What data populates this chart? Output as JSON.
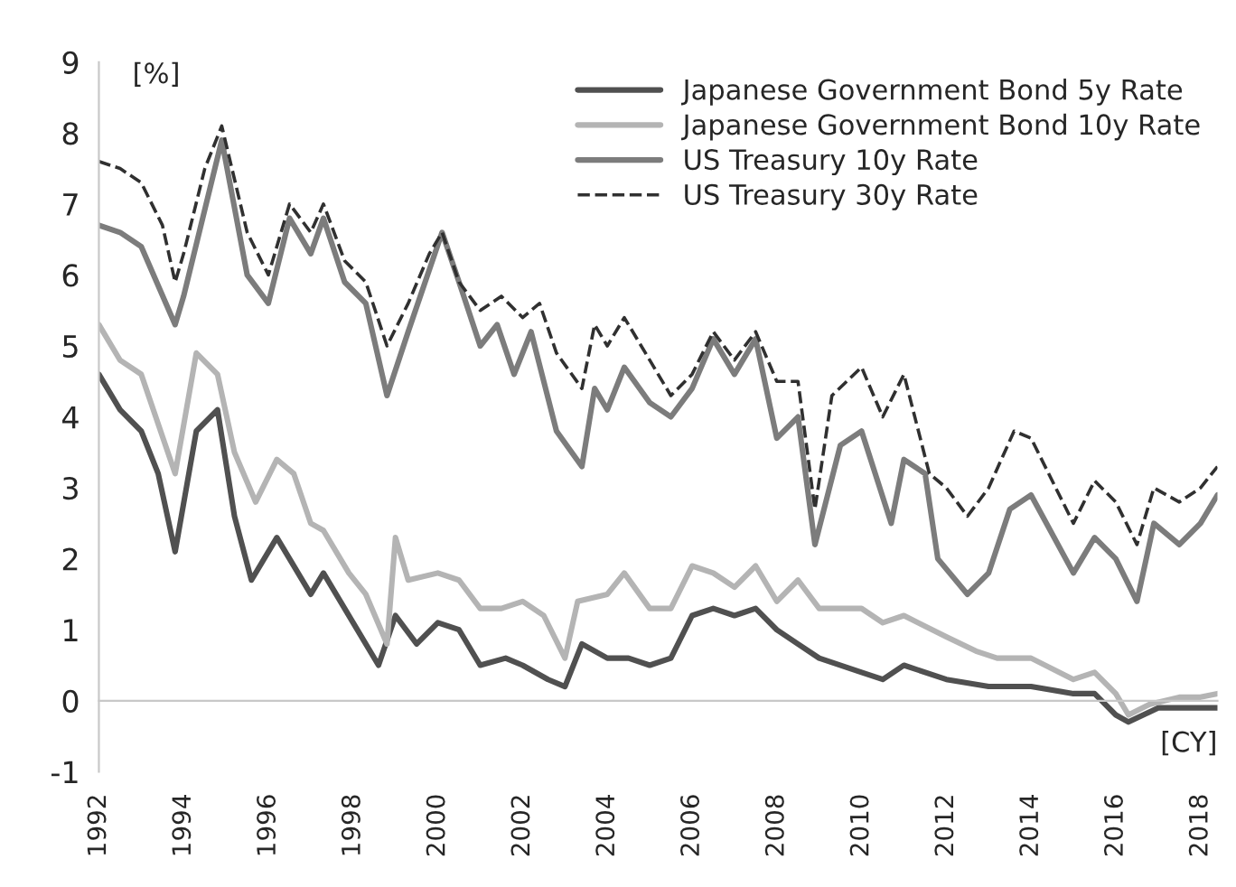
{
  "chart_data": {
    "type": "line",
    "xlim": [
      1992,
      2018.4
    ],
    "xticks": [
      1992,
      1994,
      1996,
      1998,
      2000,
      2002,
      2004,
      2006,
      2008,
      2010,
      2012,
      2014,
      2016,
      2018
    ],
    "ylim": [
      -1,
      9
    ],
    "yticks": [
      -1,
      0,
      1,
      2,
      3,
      4,
      5,
      6,
      7,
      8,
      9
    ],
    "legend": "top right",
    "annotations": [
      "[%]",
      "[CY]"
    ],
    "series": [
      {
        "name": "Japanese Government Bond 5y Rate",
        "color": "#505050",
        "line_style": "solid",
        "x": [
          1992,
          1992.5,
          1993,
          1993.4,
          1993.8,
          1994.3,
          1994.8,
          1995.2,
          1995.6,
          1996.2,
          1996.5,
          1997,
          1997.3,
          1998,
          1998.6,
          1999,
          1999.5,
          2000,
          2000.5,
          2001,
          2001.6,
          2002,
          2002.6,
          2003,
          2003.4,
          2004,
          2004.5,
          2005,
          2005.5,
          2006,
          2006.5,
          2007,
          2007.5,
          2008,
          2008.5,
          2009,
          2010,
          2010.5,
          2011,
          2012,
          2013,
          2014,
          2015,
          2015.5,
          2016,
          2016.3,
          2017,
          2018,
          2018.4
        ],
        "values": [
          4.6,
          4.1,
          3.8,
          3.2,
          2.1,
          3.8,
          4.1,
          2.6,
          1.7,
          2.3,
          2.0,
          1.5,
          1.8,
          1.1,
          0.5,
          1.2,
          0.8,
          1.1,
          1.0,
          0.5,
          0.6,
          0.5,
          0.3,
          0.2,
          0.8,
          0.6,
          0.6,
          0.5,
          0.6,
          1.2,
          1.3,
          1.2,
          1.3,
          1.0,
          0.8,
          0.6,
          0.4,
          0.3,
          0.5,
          0.3,
          0.2,
          0.2,
          0.1,
          0.1,
          -0.2,
          -0.3,
          -0.1,
          -0.1,
          -0.1
        ]
      },
      {
        "name": "Japanese Government Bond 10y Rate",
        "color": "#b4b4b4",
        "line_style": "solid",
        "x": [
          1992,
          1992.5,
          1993,
          1993.8,
          1994.3,
          1994.8,
          1995.2,
          1995.7,
          1996.2,
          1996.6,
          1997,
          1997.3,
          1997.9,
          1998.3,
          1998.8,
          1999,
          1999.3,
          2000,
          2000.5,
          2001,
          2001.5,
          2002,
          2002.5,
          2003,
          2003.3,
          2004,
          2004.4,
          2005,
          2005.5,
          2006,
          2006.5,
          2007,
          2007.5,
          2008,
          2008.5,
          2009,
          2010,
          2010.5,
          2011,
          2012,
          2012.7,
          2013.2,
          2014,
          2015,
          2015.5,
          2016,
          2016.3,
          2016.8,
          2017.5,
          2018,
          2018.4
        ],
        "values": [
          5.3,
          4.8,
          4.6,
          3.2,
          4.9,
          4.6,
          3.5,
          2.8,
          3.4,
          3.2,
          2.5,
          2.4,
          1.8,
          1.5,
          0.8,
          2.3,
          1.7,
          1.8,
          1.7,
          1.3,
          1.3,
          1.4,
          1.2,
          0.6,
          1.4,
          1.5,
          1.8,
          1.3,
          1.3,
          1.9,
          1.8,
          1.6,
          1.9,
          1.4,
          1.7,
          1.3,
          1.3,
          1.1,
          1.2,
          0.9,
          0.7,
          0.6,
          0.6,
          0.3,
          0.4,
          0.1,
          -0.2,
          -0.05,
          0.05,
          0.05,
          0.1
        ]
      },
      {
        "name": "US Treasury 10y Rate",
        "color": "#7c7c7c",
        "line_style": "solid",
        "x": [
          1992,
          1992.5,
          1993,
          1993.8,
          1994,
          1994.9,
          1995.5,
          1996,
          1996.5,
          1997,
          1997.3,
          1997.8,
          1998.3,
          1998.8,
          1999.3,
          2000.1,
          2000.5,
          2001,
          2001.4,
          2001.8,
          2002.2,
          2002.8,
          2003.4,
          2003.7,
          2004,
          2004.4,
          2005,
          2005.5,
          2006,
          2006.5,
          2007,
          2007.5,
          2008,
          2008.5,
          2008.9,
          2009.5,
          2010,
          2010.7,
          2011,
          2011.5,
          2011.8,
          2012.5,
          2013,
          2013.5,
          2014,
          2015,
          2015.5,
          2016,
          2016.5,
          2016.9,
          2017.5,
          2018,
          2018.4
        ],
        "values": [
          6.7,
          6.6,
          6.4,
          5.3,
          5.7,
          7.9,
          6.0,
          5.6,
          6.8,
          6.3,
          6.8,
          5.9,
          5.6,
          4.3,
          5.2,
          6.6,
          5.9,
          5.0,
          5.3,
          4.6,
          5.2,
          3.8,
          3.3,
          4.4,
          4.1,
          4.7,
          4.2,
          4.0,
          4.4,
          5.1,
          4.6,
          5.1,
          3.7,
          4.0,
          2.2,
          3.6,
          3.8,
          2.5,
          3.4,
          3.2,
          2.0,
          1.5,
          1.8,
          2.7,
          2.9,
          1.8,
          2.3,
          2.0,
          1.4,
          2.5,
          2.2,
          2.5,
          2.9
        ]
      },
      {
        "name": "US Treasury 30y Rate",
        "color": "#303030",
        "line_style": "dashed",
        "x": [
          1992,
          1992.5,
          1993,
          1993.5,
          1993.8,
          1994,
          1994.5,
          1994.9,
          1995.5,
          1996,
          1996.5,
          1997,
          1997.3,
          1997.8,
          1998.3,
          1998.8,
          1999.3,
          1999.8,
          2000.1,
          2000.5,
          2001,
          2001.5,
          2002,
          2002.4,
          2002.8,
          2003.4,
          2003.7,
          2004,
          2004.4,
          2005,
          2005.5,
          2006,
          2006.5,
          2007,
          2007.5,
          2008,
          2008.5,
          2008.9,
          2009.3,
          2010,
          2010.5,
          2011,
          2011.6,
          2012,
          2012.5,
          2013,
          2013.6,
          2014,
          2015,
          2015.5,
          2016,
          2016.5,
          2016.9,
          2017.5,
          2018,
          2018.4
        ],
        "values": [
          7.6,
          7.5,
          7.3,
          6.7,
          5.9,
          6.3,
          7.5,
          8.1,
          6.6,
          6.0,
          7.0,
          6.6,
          7.0,
          6.2,
          5.9,
          5.0,
          5.6,
          6.3,
          6.6,
          5.9,
          5.5,
          5.7,
          5.4,
          5.6,
          4.9,
          4.4,
          5.3,
          5.0,
          5.4,
          4.8,
          4.3,
          4.6,
          5.2,
          4.8,
          5.2,
          4.5,
          4.5,
          2.7,
          4.3,
          4.7,
          4.0,
          4.6,
          3.2,
          3.0,
          2.6,
          3.0,
          3.8,
          3.7,
          2.5,
          3.1,
          2.8,
          2.2,
          3.0,
          2.8,
          3.0,
          3.3
        ]
      }
    ]
  }
}
